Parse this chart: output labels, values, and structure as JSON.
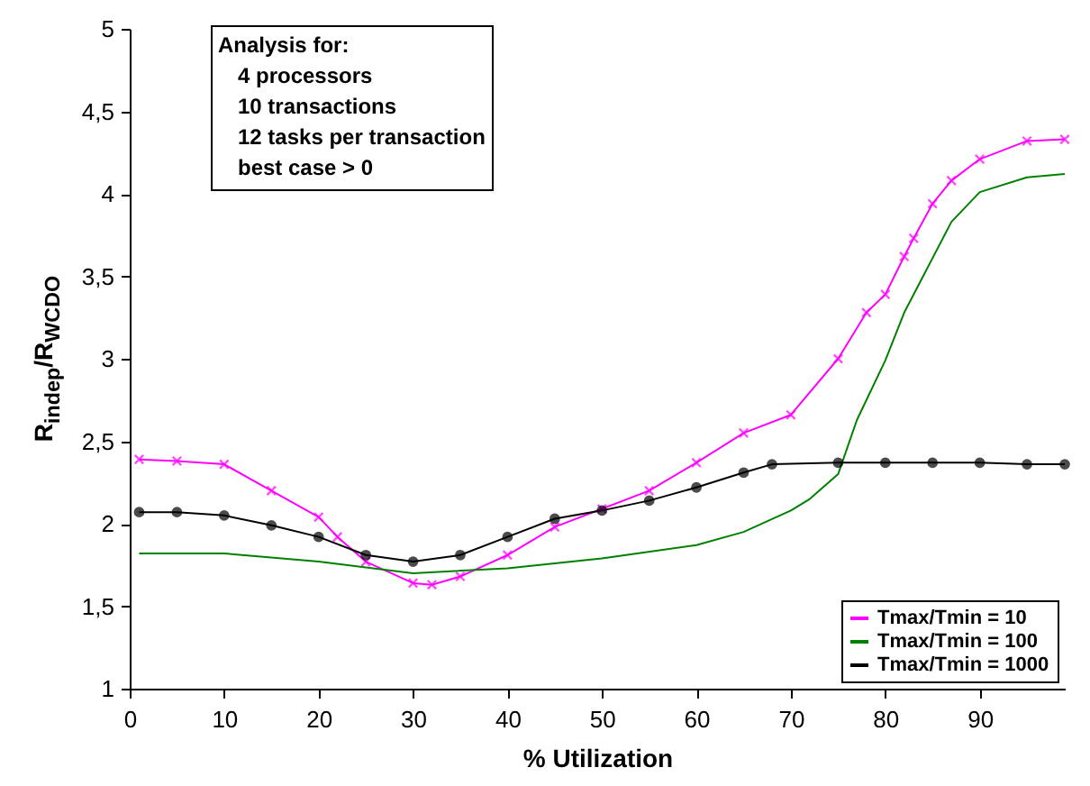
{
  "chart_data": {
    "type": "line",
    "xlabel": "% Utilization",
    "ylabel": "R$_{indep}$/R$_{WCDO}$",
    "annotations": [
      "Analysis for:",
      "4 processors",
      "10 transactions",
      "12 tasks per transaction",
      "best case > 0"
    ],
    "xlim": [
      0,
      99
    ],
    "xticks": [
      0,
      10,
      20,
      30,
      40,
      50,
      60,
      70,
      80,
      90
    ],
    "ylim": [
      1,
      5
    ],
    "yticks": [
      1,
      {
        "value": 1.5,
        "label": "1,5"
      },
      2,
      {
        "value": 2.5,
        "label": "2,5"
      },
      3,
      {
        "value": 3.5,
        "label": "3,5"
      },
      4,
      {
        "value": 4.5,
        "label": "4,5"
      },
      5
    ],
    "grid": false,
    "legend": "bottom right",
    "series": [
      {
        "name": "Tmax/Tmin = 10",
        "color": "#ff00ff",
        "marker": "cross",
        "x": [
          1,
          5,
          10,
          15,
          20,
          22,
          25,
          30,
          32,
          35,
          40,
          45,
          50,
          55,
          60,
          65,
          70,
          75,
          78,
          80,
          82,
          83,
          85,
          87,
          90,
          95,
          99
        ],
        "values": [
          2.39,
          2.38,
          2.36,
          2.2,
          2.04,
          1.92,
          1.77,
          1.64,
          1.63,
          1.68,
          1.81,
          1.98,
          2.09,
          2.2,
          2.37,
          2.55,
          2.66,
          3.0,
          3.28,
          3.39,
          3.62,
          3.73,
          3.94,
          4.08,
          4.21,
          4.32,
          4.33
        ]
      },
      {
        "name": "Tmax/Tmin = 100",
        "color": "#008000",
        "marker": "none",
        "x": [
          1,
          10,
          20,
          30,
          40,
          50,
          60,
          65,
          70,
          72,
          75,
          77,
          80,
          82,
          85,
          87,
          90,
          95,
          99
        ],
        "values": [
          1.82,
          1.82,
          1.77,
          1.7,
          1.73,
          1.79,
          1.87,
          1.95,
          2.08,
          2.15,
          2.3,
          2.63,
          2.99,
          3.28,
          3.61,
          3.83,
          4.01,
          4.1,
          4.12
        ]
      },
      {
        "name": "Tmax/Tmin = 1000",
        "color": "#000000",
        "marker": "circle",
        "x": [
          1,
          5,
          10,
          15,
          20,
          25,
          30,
          35,
          40,
          45,
          50,
          55,
          60,
          65,
          68,
          75,
          80,
          85,
          90,
          95,
          99
        ],
        "values": [
          2.07,
          2.07,
          2.05,
          1.99,
          1.92,
          1.81,
          1.77,
          1.81,
          1.92,
          2.03,
          2.08,
          2.14,
          2.22,
          2.31,
          2.36,
          2.37,
          2.37,
          2.37,
          2.37,
          2.36,
          2.36
        ]
      }
    ]
  }
}
